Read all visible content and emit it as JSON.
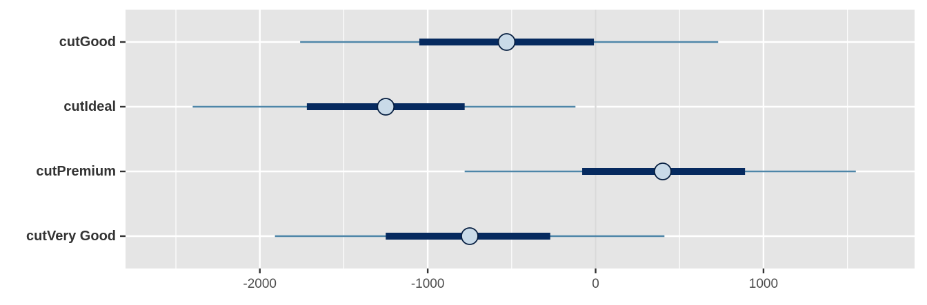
{
  "chart_data": {
    "type": "interval",
    "categories": [
      "cutGood",
      "cutIdeal",
      "cutPremium",
      "cutVery Good"
    ],
    "estimates": [
      {
        "term": "cutGood",
        "point": -530,
        "inner": [
          -1050,
          -10
        ],
        "outer": [
          -1760,
          730
        ]
      },
      {
        "term": "cutIdeal",
        "point": -1250,
        "inner": [
          -1720,
          -780
        ],
        "outer": [
          -2400,
          -120
        ]
      },
      {
        "term": "cutPremium",
        "point": 400,
        "inner": [
          -80,
          890
        ],
        "outer": [
          -780,
          1550
        ]
      },
      {
        "term": "cutVery Good",
        "point": -750,
        "inner": [
          -1250,
          -270
        ],
        "outer": [
          -1910,
          410
        ]
      }
    ],
    "x_ticks": [
      -2000,
      -1000,
      0,
      1000
    ],
    "x_tick_labels": [
      "-2000",
      "-1000",
      "0",
      "1000"
    ],
    "xlim": [
      -2800,
      1900
    ],
    "reference_line": 0,
    "grid": true,
    "title": "",
    "xlabel": "",
    "ylabel": "",
    "colors": {
      "panel": "#e5e5e5",
      "grid": "#ffffff",
      "outer_interval": "#4e86a8",
      "inner_interval": "#062a5f",
      "point_fill": "#c9dae8",
      "point_stroke": "#061e40",
      "reference_line": "#d9d9d9"
    }
  }
}
